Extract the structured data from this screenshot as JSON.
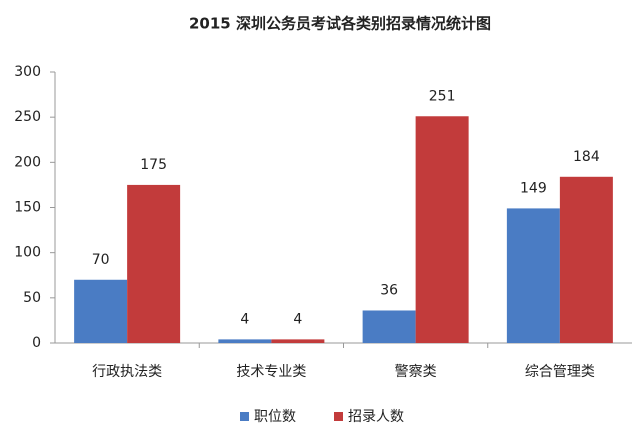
{
  "chart_data": {
    "type": "bar",
    "title": "2015 深圳公务员考试各类别招录情况统计图",
    "categories": [
      "行政执法类",
      "技术专业类",
      "警察类",
      "综合管理类"
    ],
    "series": [
      {
        "name": "职位数",
        "color": "#4a7cc4",
        "values": [
          70,
          4,
          36,
          149
        ]
      },
      {
        "name": "招录人数",
        "color": "#c23b3b",
        "values": [
          175,
          4,
          251,
          184
        ]
      }
    ],
    "ylim": [
      0,
      300
    ],
    "yticks": [
      0,
      50,
      100,
      150,
      200,
      250,
      300
    ],
    "grid": false,
    "legend": "bottom",
    "data_labels": true
  }
}
